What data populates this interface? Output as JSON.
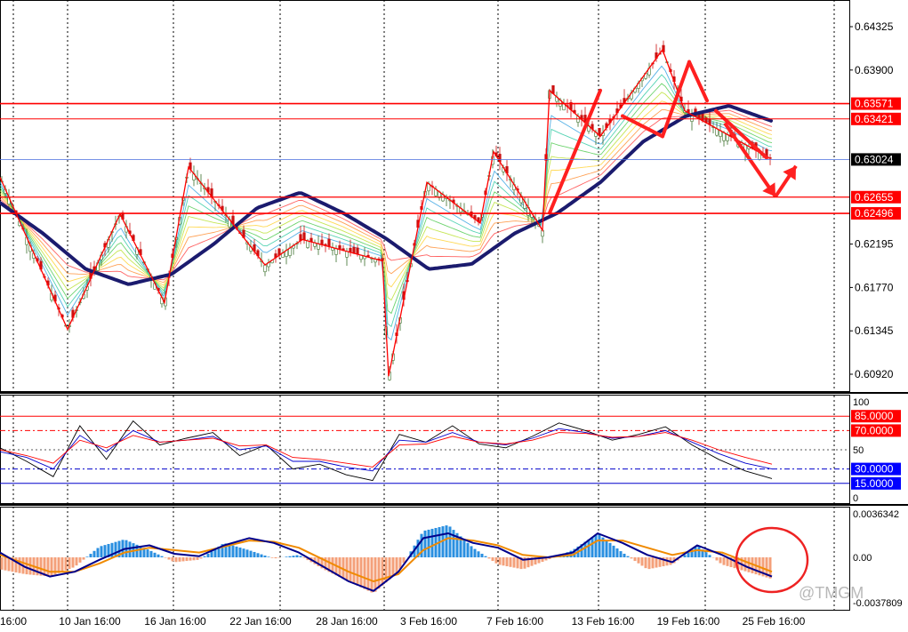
{
  "chart_data": [
    {
      "type": "candlestick",
      "panel": "price",
      "price_ticks": [
        "0.64325",
        "0.63900",
        "0.62195",
        "0.61770",
        "0.61345",
        "0.60920"
      ],
      "hlines": [
        {
          "value": 0.63571,
          "label": "0.63571",
          "color": "#ff0000",
          "width": 1.6,
          "tag_bg": "#ff0000",
          "tag_fg": "#ffffff"
        },
        {
          "value": 0.63421,
          "label": "0.63421",
          "color": "#ff0000",
          "width": 1,
          "tag_bg": "#ff0000",
          "tag_fg": "#ffffff"
        },
        {
          "value": 0.63024,
          "label": "0.63024",
          "color": "#4a6fdd",
          "width": 0.8,
          "tag_bg": "#000000",
          "tag_fg": "#ffffff"
        },
        {
          "value": 0.62655,
          "label": "0.62655",
          "color": "#ff0000",
          "width": 1.2,
          "tag_bg": "#ff0000",
          "tag_fg": "#ffffff"
        },
        {
          "value": 0.62496,
          "label": "0.62496",
          "color": "#ff0000",
          "width": 1.6,
          "tag_bg": "#ff0000",
          "tag_fg": "#ffffff"
        }
      ],
      "zigzag_close": [
        0.6285,
        0.6136,
        0.6249,
        0.6162,
        0.6295,
        0.6199,
        0.6224,
        0.6203,
        0.609,
        0.628,
        0.624,
        0.631,
        0.6233,
        0.637,
        0.6325,
        0.641,
        0.635,
        0.6304
      ],
      "ma_close": [
        0.626,
        0.623,
        0.6195,
        0.618,
        0.619,
        0.622,
        0.6255,
        0.627,
        0.625,
        0.6225,
        0.6195,
        0.62,
        0.623,
        0.625,
        0.628,
        0.632,
        0.6345,
        0.6355,
        0.634
      ],
      "projection": [
        0.6304,
        0.6266,
        0.6296
      ],
      "colors": {
        "bull": "#3a6e2a",
        "bear": "#cc1111",
        "zigzag": "#ff0000",
        "ma": "#1b1b6e",
        "arrow": "#ff2020"
      }
    },
    {
      "type": "line",
      "panel": "stochastic",
      "axis_ticks": [
        "100",
        "50",
        "0"
      ],
      "levels": [
        {
          "value": 85,
          "label": "85.0000",
          "color": "#ff0000",
          "style": "solid",
          "tag_bg": "#ff0000"
        },
        {
          "value": 70,
          "label": "70.0000",
          "color": "#ff0000",
          "style": "dashdot",
          "tag_bg": "#ff0000"
        },
        {
          "value": 50,
          "label": "",
          "color": "#555555",
          "style": "dotted",
          "tag_bg": ""
        },
        {
          "value": 30,
          "label": "30.0000",
          "color": "#0000cc",
          "style": "dashdot",
          "tag_bg": "#0000ff"
        },
        {
          "value": 15,
          "label": "15.0000",
          "color": "#0000cc",
          "style": "solid",
          "tag_bg": "#0000ff"
        }
      ],
      "series": [
        {
          "values": [
            52,
            38,
            22,
            75,
            40,
            80,
            55,
            62,
            68,
            44,
            55,
            30,
            35,
            24,
            18,
            66,
            58,
            75,
            56,
            52,
            64,
            78,
            70,
            60,
            66,
            74,
            55,
            40,
            28,
            20
          ],
          "color": "#000000"
        },
        {
          "values": [
            48,
            42,
            30,
            65,
            48,
            70,
            58,
            60,
            64,
            50,
            54,
            38,
            38,
            32,
            28,
            60,
            58,
            68,
            58,
            55,
            62,
            72,
            68,
            62,
            64,
            70,
            58,
            46,
            36,
            30
          ],
          "color": "#0000cc"
        },
        {
          "values": [
            50,
            44,
            36,
            60,
            52,
            65,
            58,
            60,
            62,
            54,
            55,
            42,
            40,
            36,
            32,
            55,
            56,
            64,
            58,
            56,
            60,
            68,
            67,
            63,
            64,
            68,
            60,
            50,
            42,
            35
          ],
          "color": "#ff0000"
        }
      ]
    },
    {
      "type": "bar",
      "panel": "macd",
      "axis_ticks": [
        "0.0036342",
        "0.00",
        "-0.0037809"
      ],
      "ylim": [
        -0.0037809,
        0.0036342
      ],
      "histogram": [
        -0.001,
        -0.0014,
        -0.0016,
        -0.0008,
        0.0009,
        0.0015,
        0.0006,
        -0.0004,
        -0.0002,
        0.0012,
        0.0006,
        -0.0001,
        0.0002,
        -0.001,
        -0.002,
        -0.003,
        -0.0012,
        0.0022,
        0.0027,
        0.0008,
        -0.0006,
        -0.001,
        -0.0002,
        0.0006,
        0.002,
        0.0004,
        -0.001,
        -0.0006,
        0.001,
        -0.0006,
        -0.0012,
        -0.0018
      ],
      "macd_line": [
        0.0004,
        -0.0008,
        -0.0016,
        -0.0012,
        -0.0002,
        0.0007,
        0.001,
        0.0003,
        0.0001,
        0.001,
        0.0016,
        0.0012,
        0.0004,
        -0.0008,
        -0.002,
        -0.0028,
        -0.0012,
        0.0016,
        0.002,
        0.0012,
        0.0008,
        -0.0002,
        0.0,
        0.0004,
        0.002,
        0.0012,
        0.0002,
        -0.0004,
        0.001,
        0.0002,
        -0.0008,
        -0.0016
      ],
      "signal_line": [
        0.0002,
        -0.0005,
        -0.0012,
        -0.0012,
        -0.0005,
        0.0004,
        0.0008,
        0.0006,
        0.0004,
        0.0009,
        0.0014,
        0.0013,
        0.0008,
        -0.0002,
        -0.0012,
        -0.002,
        -0.0014,
        0.0006,
        0.0016,
        0.0014,
        0.001,
        0.0002,
        0.0,
        0.0002,
        0.0014,
        0.0014,
        0.0008,
        0.0002,
        0.0006,
        0.0004,
        -0.0004,
        -0.0012
      ],
      "colors": {
        "up": "#2a8fe0",
        "down": "#f4a07a",
        "macd": "#00008b",
        "signal": "#f08a00",
        "circle": "#ee2222"
      },
      "watermark": "@TMGM"
    }
  ],
  "x_axis": {
    "labels": [
      "16:00",
      "10 Jan 16:00",
      "16 Jan 16:00",
      "22 Jan 16:00",
      "28 Jan 16:00",
      "3 Feb 16:00",
      "7 Feb 16:00",
      "13 Feb 16:00",
      "19 Feb 16:00",
      "25 Feb 16:00"
    ]
  }
}
